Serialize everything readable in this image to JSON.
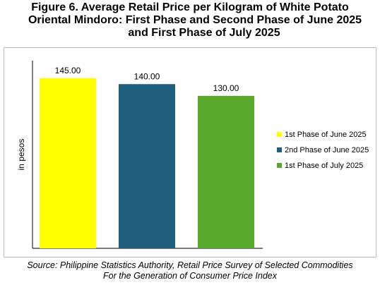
{
  "title": {
    "line1": "Figure 6. Average Retail Price per Kilogram of White Potato",
    "line2": "Oriental Mindoro: First Phase and Second Phase of June 2025",
    "line3": "and First Phase of July 2025"
  },
  "source": {
    "line1": "Source: Philippine Statistics Authority, Retail Price Survey of Selected Commodities",
    "line2": "For the Generation of Consumer Price Index"
  },
  "chart_data": {
    "type": "bar",
    "categories": [
      "1st Phase of June 2025",
      "2nd Phase of June 2025",
      "1st Phase of July 2025"
    ],
    "values": [
      145.0,
      140.0,
      130.0
    ],
    "data_labels": [
      "145.00",
      "140.00",
      "130.00"
    ],
    "colors": [
      "#FFFF00",
      "#1F5E7E",
      "#5BAA2E"
    ],
    "ylabel": "in pesos",
    "ylim": [
      0,
      160
    ],
    "grid": false,
    "legend_position": "right"
  }
}
